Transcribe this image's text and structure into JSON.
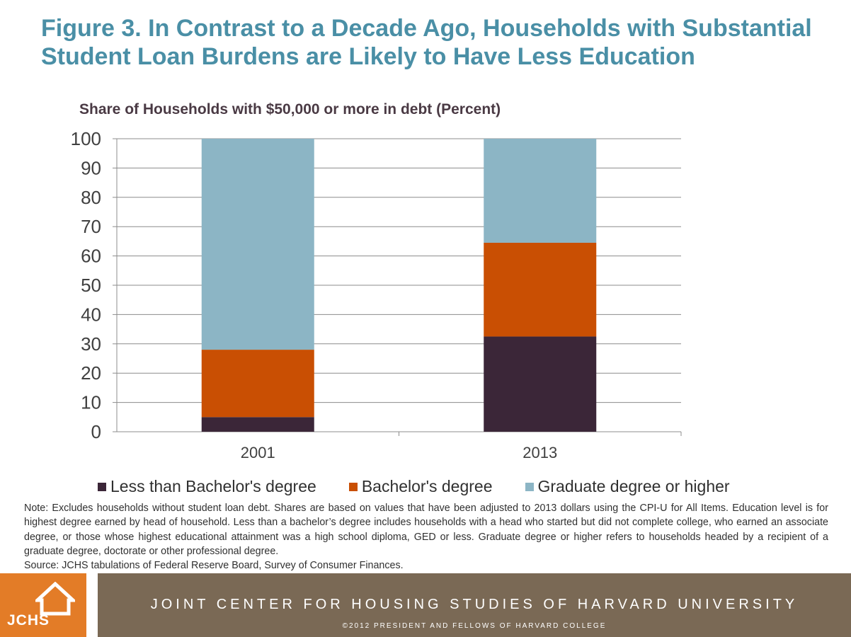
{
  "header": {
    "title": "Figure 3. In Contrast to a Decade Ago, Households with Substantial Student Loan Burdens are Likely to Have Less Education",
    "subtitle": "Share of Households with $50,000 or more in debt (Percent)"
  },
  "chart_data": {
    "type": "bar",
    "stacked": true,
    "categories": [
      "2001",
      "2013"
    ],
    "series": [
      {
        "name": "Less than Bachelor's degree",
        "color": "#3b2638",
        "values": [
          5,
          32.5
        ]
      },
      {
        "name": "Bachelor's degree",
        "color": "#c94f03",
        "values": [
          23,
          32
        ]
      },
      {
        "name": "Graduate degree or higher",
        "color": "#8cb5c5",
        "values": [
          72,
          35.5
        ]
      }
    ],
    "ylim": [
      0,
      100
    ],
    "yticks": [
      "0",
      "10",
      "20",
      "30",
      "40",
      "50",
      "60",
      "70",
      "80",
      "90",
      "100"
    ],
    "grid": true,
    "legend_position": "bottom"
  },
  "notes": {
    "note": "Note: Excludes households without student loan debt. Shares are based on values that have been adjusted to 2013 dollars using the CPI-U for All Items. Education level is for highest degree earned by head of household. Less than a bachelor’s degree includes households with a head who started but did not complete college, who earned an associate degree, or those whose highest educational attainment was a high school diploma, GED or less. Graduate degree or higher refers to households headed by a recipient of a graduate degree, doctorate or other professional degree.",
    "source": "Source: JCHS tabulations of Federal Reserve Board, Survey of Consumer Finances."
  },
  "footer": {
    "logo_text": "JCHS",
    "org_name": "JOINT CENTER FOR HOUSING STUDIES OF HARVARD UNIVERSITY",
    "copyright": "©2012 PRESIDENT AND FELLOWS OF HARVARD COLLEGE",
    "logo_color": "#e37c27",
    "band_color": "#7a6955"
  }
}
